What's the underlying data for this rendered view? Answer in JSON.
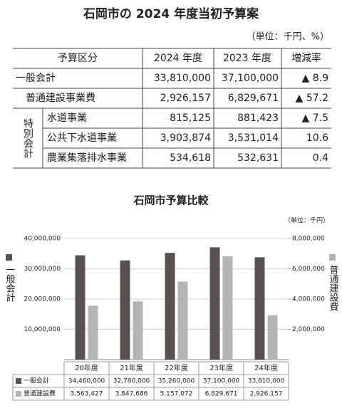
{
  "title": "石岡市の 2024 年度当初予算案",
  "unit_note": "（単位：千円、%）",
  "table": {
    "header": [
      "予算区分",
      "2024 年度",
      "2023 年度",
      "増減率"
    ],
    "group_label": "特別会計",
    "rows": [
      [
        "一般会計",
        "33,810,000",
        "37,100,000",
        "▲ 8.9"
      ],
      [
        "普通建設事業費",
        "2,926,157",
        "6,829,671",
        "▲ 57.2"
      ],
      [
        "水道事業",
        "815,125",
        "881,423",
        "▲ 7.5"
      ],
      [
        "公共下水道事業",
        "3,903,874",
        "3,531,014",
        "10.6"
      ],
      [
        "農業集落排水事業",
        "534,618",
        "532,631",
        "0.4"
      ]
    ]
  },
  "chart_data": {
    "type": "bar",
    "title": "石岡市予算比較",
    "unit_note": "（単位：千円）",
    "ylabel": "一般会計",
    "y2label": "普通建設費",
    "categories": [
      "20年度",
      "21年度",
      "22年度",
      "23年度",
      "24年度"
    ],
    "series": [
      {
        "name": "一般会計",
        "color": "#57524f",
        "axis": "y",
        "values": [
          34460000,
          32780000,
          35260000,
          37100000,
          33810000
        ],
        "value_labels": [
          "34,460,000",
          "32,780,000",
          "35,260,000",
          "37,100,000",
          "33,810,000"
        ]
      },
      {
        "name": "普通建設費",
        "color": "#b4b4b4",
        "axis": "y2",
        "values": [
          3563427,
          3847686,
          5157072,
          6829671,
          2926157
        ],
        "value_labels": [
          "3,563,427",
          "3,847,686",
          "5,157,072",
          "6,829,671",
          "2,926,157"
        ]
      }
    ],
    "ylim": [
      0,
      40000000
    ],
    "yticks": [
      {
        "value": 10000000,
        "label": "10,000,000"
      },
      {
        "value": 20000000,
        "label": "20,000,000"
      },
      {
        "value": 30000000,
        "label": "30,000,000"
      },
      {
        "value": 40000000,
        "label": "40,000,000"
      }
    ],
    "y2lim": [
      0,
      8000000
    ],
    "y2ticks": [
      {
        "value": 2000000,
        "label": "2,000,000"
      },
      {
        "value": 4000000,
        "label": "4,000,000"
      },
      {
        "value": 6000000,
        "label": "6,000,000"
      },
      {
        "value": 8000000,
        "label": "8,000,000"
      }
    ],
    "grid": true
  }
}
